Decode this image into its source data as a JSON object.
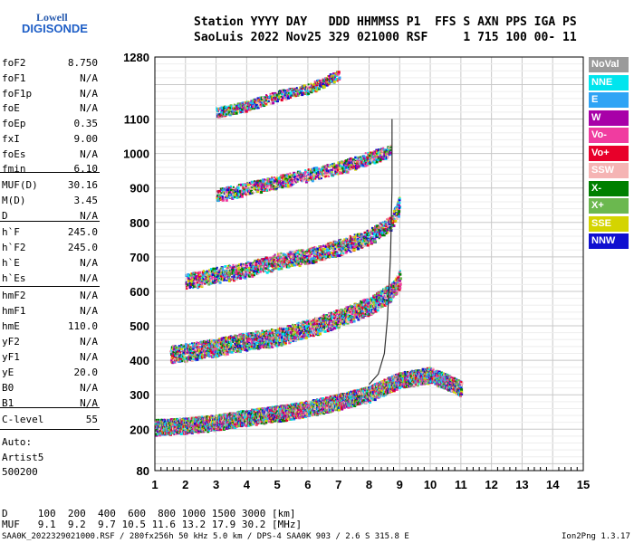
{
  "logo": {
    "top": "Lowell",
    "bottom": "DIGISONDE"
  },
  "header": {
    "line1": "Station YYYY DAY   DDD HHMMSS P1  FFS S AXN PPS IGA PS",
    "line2": "SaoLuis 2022 Nov25 329 021000 RSF     1 715 100 00- 11"
  },
  "params": [
    {
      "name": "foF2",
      "value": "8.750"
    },
    {
      "name": "foF1",
      "value": "N/A"
    },
    {
      "name": "foF1p",
      "value": "N/A"
    },
    {
      "name": "foE",
      "value": "N/A"
    },
    {
      "name": "foEp",
      "value": "0.35"
    },
    {
      "name": "fxI",
      "value": "9.00"
    },
    {
      "name": "foEs",
      "value": "N/A"
    },
    {
      "name": "fmin",
      "value": "6.10"
    },
    {
      "name": "MUF(D)",
      "value": "30.16"
    },
    {
      "name": "M(D)",
      "value": "3.45"
    },
    {
      "name": "D",
      "value": "N/A"
    },
    {
      "name": "h`F",
      "value": "245.0"
    },
    {
      "name": "h`F2",
      "value": "245.0"
    },
    {
      "name": "h`E",
      "value": "N/A"
    },
    {
      "name": "h`Es",
      "value": "N/A"
    },
    {
      "name": "hmF2",
      "value": "N/A"
    },
    {
      "name": "hmF1",
      "value": "N/A"
    },
    {
      "name": "hmE",
      "value": "110.0"
    },
    {
      "name": "yF2",
      "value": "N/A"
    },
    {
      "name": "yF1",
      "value": "N/A"
    },
    {
      "name": "yE",
      "value": "20.0"
    },
    {
      "name": "B0",
      "value": "N/A"
    },
    {
      "name": "B1",
      "value": "N/A"
    },
    {
      "name": "C-level",
      "value": "55"
    }
  ],
  "auto": {
    "l1": "Auto:",
    "l2": "Artist5",
    "l3": "500200"
  },
  "legend": [
    {
      "label": "NoVal",
      "color": "#9a9a9a"
    },
    {
      "label": "NNE",
      "color": "#00e5ee"
    },
    {
      "label": "E",
      "color": "#2fa4f5"
    },
    {
      "label": "W",
      "color": "#a800a8"
    },
    {
      "label": "Vo-",
      "color": "#f03ca0"
    },
    {
      "label": "Vo+",
      "color": "#e8002a"
    },
    {
      "label": "SSW",
      "color": "#f5b4b4"
    },
    {
      "label": "X-",
      "color": "#008000"
    },
    {
      "label": "X+",
      "color": "#6bb84f"
    },
    {
      "label": "SSE",
      "color": "#d4d400"
    },
    {
      "label": "NNW",
      "color": "#1010d0"
    }
  ],
  "footer": {
    "d_line": "D     100  200  400  600  800 1000 1500 3000 [km]",
    "muf_line": "MUF   9.1  9.2  9.7 10.5 11.6 13.2 17.9 30.2 [MHz]",
    "status_left": "SAA0K_2022329021000.RSF / 280fx256h 50 kHz 5.0 km / DPS-4 SAA0K 903 / 2.6 S 315.8 E",
    "status_right": "Ion2Png 1.3.17"
  },
  "chart_data": {
    "type": "scatter",
    "title": "",
    "xlabel": "",
    "ylabel": "",
    "xlim": [
      1,
      15
    ],
    "ylim": [
      80,
      1280
    ],
    "x_ticks": [
      1,
      2,
      3,
      4,
      5,
      6,
      7,
      8,
      9,
      10,
      11,
      12,
      13,
      14,
      15
    ],
    "y_ticks": [
      80,
      200,
      300,
      400,
      500,
      600,
      700,
      800,
      900,
      1000,
      1100,
      1280
    ],
    "grid": true,
    "traces": [
      {
        "name": "1st hop",
        "x": [
          1.0,
          2.0,
          3.0,
          4.0,
          5.0,
          6.0,
          7.0,
          8.0,
          8.6,
          9.0,
          10.0,
          11.0
        ],
        "y": [
          208,
          213,
          222,
          236,
          248,
          262,
          282,
          305,
          330,
          345,
          360,
          320
        ],
        "spread": 22
      },
      {
        "name": "2nd hop",
        "x": [
          1.5,
          2.0,
          3.0,
          4.0,
          5.0,
          6.0,
          7.0,
          8.0,
          8.7,
          9.0
        ],
        "y": [
          420,
          425,
          440,
          458,
          470,
          495,
          525,
          560,
          600,
          640
        ],
        "spread": 25
      },
      {
        "name": "3rd hop",
        "x": [
          2.0,
          3.0,
          4.0,
          5.0,
          6.0,
          7.0,
          8.0,
          8.7,
          9.0
        ],
        "y": [
          630,
          650,
          665,
          690,
          705,
          730,
          760,
          800,
          860
        ],
        "spread": 22
      },
      {
        "name": "4th hop",
        "x": [
          3.0,
          4.0,
          5.0,
          6.0,
          7.0,
          8.0,
          8.7
        ],
        "y": [
          880,
          900,
          920,
          940,
          960,
          990,
          1010
        ],
        "spread": 18
      },
      {
        "name": "5th hop",
        "x": [
          3.0,
          4.0,
          5.0,
          6.0,
          7.0
        ],
        "y": [
          1120,
          1140,
          1170,
          1190,
          1230
        ],
        "spread": 14
      }
    ],
    "profile_curve": {
      "x": [
        8.0,
        8.3,
        8.5,
        8.6,
        8.7,
        8.75,
        8.75
      ],
      "y": [
        330,
        360,
        420,
        520,
        700,
        900,
        1100
      ]
    }
  }
}
